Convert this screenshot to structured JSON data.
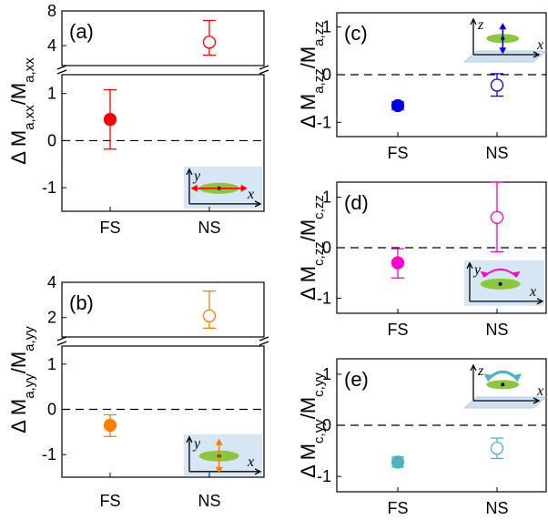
{
  "chart_data": [
    {
      "id": "a",
      "type": "scatter",
      "panel_label": "(a)",
      "ylabel_parts": [
        "Δ M",
        "a,xx",
        "/M",
        "a,xx"
      ],
      "categories": [
        "FS",
        "NS"
      ],
      "axis_break": true,
      "ylim_lower": [
        -1.5,
        1.4
      ],
      "ylim_upper": [
        1.7,
        8
      ],
      "yticks_lower": [
        "-1",
        "0",
        "1"
      ],
      "yticks_upper": [
        "4",
        "8"
      ],
      "series": [
        {
          "category": "FS",
          "y": 0.45,
          "err_low": -0.18,
          "err_high": 1.08,
          "filled": true,
          "color": "#ff0000"
        },
        {
          "category": "NS",
          "y": 4.4,
          "err_low": 2.9,
          "err_high": 6.9,
          "filled": false,
          "color": "#ff0000"
        }
      ],
      "reference_line": 0,
      "inset": {
        "type": "xy-rotation",
        "axes": [
          "y",
          "x"
        ],
        "arrow": "horizontal",
        "arrow_color": "#ff0000"
      }
    },
    {
      "id": "b",
      "type": "scatter",
      "panel_label": "(b)",
      "ylabel_parts": [
        "Δ M",
        "a,yy",
        "/M",
        "a,yy"
      ],
      "categories": [
        "FS",
        "NS"
      ],
      "axis_break": true,
      "ylim_lower": [
        -1.5,
        1.4
      ],
      "ylim_upper": [
        0.9,
        4
      ],
      "yticks_lower": [
        "-1",
        "0",
        "1"
      ],
      "yticks_upper": [
        "2",
        "4"
      ],
      "series": [
        {
          "category": "FS",
          "y": -0.35,
          "err_low": -0.6,
          "err_high": -0.12,
          "filled": true,
          "color": "#ff7f00"
        },
        {
          "category": "NS",
          "y": 2.1,
          "err_low": 1.4,
          "err_high": 3.5,
          "filled": false,
          "color": "#ff7f00"
        }
      ],
      "reference_line": 0,
      "inset": {
        "type": "xy-rotation",
        "axes": [
          "y",
          "x"
        ],
        "arrow": "vertical",
        "arrow_color": "#ff7f00"
      }
    },
    {
      "id": "c",
      "type": "scatter",
      "panel_label": "(c)",
      "ylabel_parts": [
        "Δ M",
        "a,zz",
        "/M",
        "a,zz"
      ],
      "categories": [
        "FS",
        "NS"
      ],
      "ylim": [
        -1.3,
        1.3
      ],
      "yticks": [
        "-1",
        "0",
        "1"
      ],
      "series": [
        {
          "category": "FS",
          "y": -0.65,
          "err_low": -0.73,
          "err_high": -0.57,
          "filled": true,
          "color": "#0000e0"
        },
        {
          "category": "NS",
          "y": -0.22,
          "err_low": -0.45,
          "err_high": 0.02,
          "filled": false,
          "color": "#0000e0"
        }
      ],
      "reference_line": 0,
      "inset": {
        "type": "zx-plane",
        "axes": [
          "z",
          "x"
        ],
        "arrow": "vertical",
        "arrow_color": "#0000e0"
      }
    },
    {
      "id": "d",
      "type": "scatter",
      "panel_label": "(d)",
      "ylabel_parts": [
        "Δ M",
        "c,zz",
        "/M",
        "c,zz"
      ],
      "categories": [
        "FS",
        "NS"
      ],
      "ylim": [
        -1.3,
        1.3
      ],
      "yticks": [
        "-1",
        "0",
        "1"
      ],
      "series": [
        {
          "category": "FS",
          "y": -0.3,
          "err_low": -0.6,
          "err_high": -0.02,
          "filled": true,
          "color": "#ff00cc"
        },
        {
          "category": "NS",
          "y": 0.6,
          "err_low": -0.08,
          "err_high": 1.3,
          "filled": false,
          "color": "#ff00cc"
        }
      ],
      "reference_line": 0,
      "inset": {
        "type": "xy-rotation",
        "axes": [
          "y",
          "x"
        ],
        "arrow": "curved",
        "arrow_color": "#ff00cc"
      }
    },
    {
      "id": "e",
      "type": "scatter",
      "panel_label": "(e)",
      "ylabel_parts": [
        "Δ M",
        "c,yy",
        "/M",
        "c,yy"
      ],
      "categories": [
        "FS",
        "NS"
      ],
      "ylim": [
        -1.3,
        1.3
      ],
      "yticks": [
        "-1",
        "0",
        "1"
      ],
      "series": [
        {
          "category": "FS",
          "y": -0.72,
          "err_low": -0.82,
          "err_high": -0.62,
          "filled": true,
          "color": "#4db3bf"
        },
        {
          "category": "NS",
          "y": -0.45,
          "err_low": -0.65,
          "err_high": -0.25,
          "filled": false,
          "color": "#4db3bf"
        }
      ],
      "reference_line": 0,
      "inset": {
        "type": "zx-plane",
        "axes": [
          "z",
          "x"
        ],
        "arrow": "curved",
        "arrow_color": "#4db3bf"
      }
    }
  ]
}
